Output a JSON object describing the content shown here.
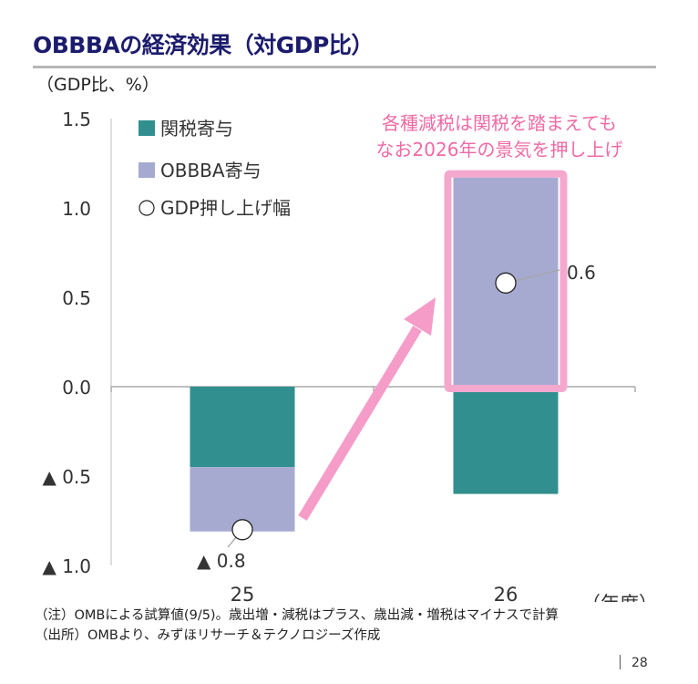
{
  "title": "OBBBAの経済効果（対GDP比）",
  "unit_label": "（GDP比、%）",
  "colors": {
    "tariff": "#318f8f",
    "obbba": "#a6aad0",
    "highlight": "#f5a8ce",
    "arrow": "#f59cc8",
    "callout_text": "#f06aa5",
    "title": "#1c1c6e"
  },
  "chart_data": {
    "type": "bar",
    "stacked": true,
    "categories": [
      "25",
      "26"
    ],
    "x_unit_label": "（年度）",
    "y_ticks": [
      {
        "value": 1.5,
        "label": "1.5"
      },
      {
        "value": 1.0,
        "label": "1.0"
      },
      {
        "value": 0.5,
        "label": "0.5"
      },
      {
        "value": 0.0,
        "label": "0.0"
      },
      {
        "value": -0.5,
        "label": "▲ 0.5"
      },
      {
        "value": -1.0,
        "label": "▲ 1.0"
      }
    ],
    "ylim": [
      -1.0,
      1.5
    ],
    "series": [
      {
        "name": "関税寄与",
        "values": [
          -0.45,
          -0.6
        ]
      },
      {
        "name": "OBBBA寄与",
        "values": [
          -0.36,
          1.17
        ]
      }
    ],
    "markers": {
      "name": "GDP押し上げ幅",
      "values": [
        -0.8,
        0.58
      ],
      "labels": [
        "▲ 0.8",
        "0.6"
      ]
    },
    "annotation": {
      "lines": [
        "各種減税は関税を踏まえても",
        "なお2026年の景気を押し上げ"
      ]
    },
    "grid": false,
    "legend_position": "top-left"
  },
  "notes": [
    "（注）OMBによる試算値(9/5)。歳出増・減税はプラス、歳出減・増税はマイナスで計算",
    "（出所）OMBより、みずほリサーチ＆テクノロジーズ作成"
  ],
  "page_number": "28"
}
